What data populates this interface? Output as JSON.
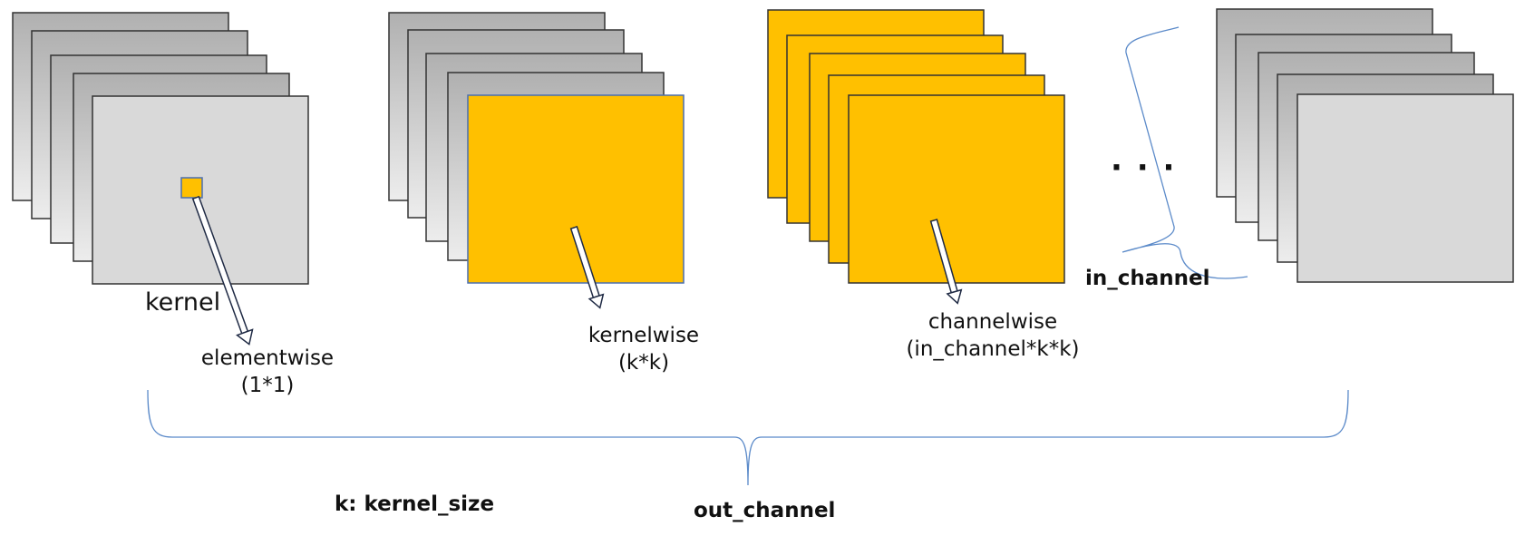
{
  "labels": {
    "kernel": "kernel",
    "elementwise": "elementwise",
    "elementwise_sub": "(1*1)",
    "kernelwise": "kernelwise",
    "kernelwise_sub": "(k*k)",
    "channelwise": "channelwise",
    "channelwise_sub": "(in_channel*k*k)",
    "ellipsis": "· · ·",
    "in_channel": "in_channel",
    "k_def": "k: kernel_size",
    "out_channel": "out_channel"
  },
  "colors": {
    "gray_front": "#d9d9d9",
    "gray_gradient_top": "#b3b3b3",
    "gray_gradient_bottom": "#ececec",
    "highlight": "#ffc000",
    "brace": "#5b8ac9",
    "border": "#333333"
  }
}
